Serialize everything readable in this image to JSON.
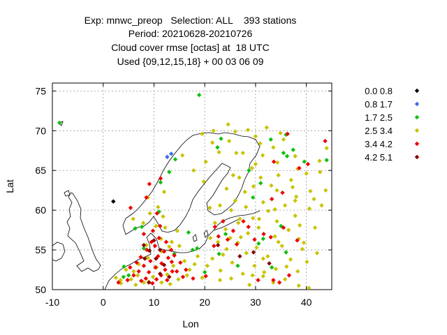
{
  "chart_data": {
    "type": "scatter",
    "title_lines": [
      "Exp: mnwc_preop   Selection: ALL    393 stations",
      "Period: 20210628-20210726",
      "Cloud cover rmse [octas] at  18 UTC",
      "Used {09,12,15,18} + 00 03 06 09"
    ],
    "xlabel": "Lon",
    "ylabel": "Lat",
    "xlim": [
      -10,
      45
    ],
    "ylim": [
      50,
      76
    ],
    "xticks": [
      -10,
      0,
      10,
      20,
      30,
      40
    ],
    "yticks": [
      50,
      55,
      60,
      65,
      70,
      75
    ],
    "grid": true,
    "legend_position": "right",
    "series": [
      {
        "name": "0.0 0.8",
        "color": "#000000",
        "points": [
          [
            2.0,
            61.1
          ]
        ]
      },
      {
        "name": "0.8 1.7",
        "color": "#3a6fe0",
        "points": [
          [
            12.6,
            66.7
          ],
          [
            13.4,
            67.1
          ]
        ]
      },
      {
        "name": "1.7 2.5",
        "color": "#0fbf0f",
        "points": [
          [
            -8.6,
            71.0
          ],
          [
            18.9,
            74.5
          ],
          [
            11.3,
            63.5
          ],
          [
            13.0,
            64.8
          ],
          [
            14.2,
            66.4
          ],
          [
            6.3,
            57.7
          ],
          [
            7.6,
            57.9
          ],
          [
            4.1,
            52.9
          ],
          [
            5.0,
            51.8
          ],
          [
            4.0,
            51.6
          ],
          [
            14.0,
            54.5
          ],
          [
            18.5,
            55.2
          ],
          [
            17.6,
            55.0
          ],
          [
            24.1,
            57.0
          ],
          [
            22.8,
            54.5
          ],
          [
            31.5,
            56.4
          ],
          [
            33.2,
            52.8
          ],
          [
            36.0,
            54.7
          ],
          [
            29.5,
            61.6
          ],
          [
            36.2,
            66.8
          ],
          [
            37.4,
            67.6
          ],
          [
            39.6,
            66.1
          ],
          [
            44.0,
            66.3
          ],
          [
            28.7,
            65.0
          ],
          [
            22.5,
            67.9
          ],
          [
            36.0,
            69.5
          ],
          [
            20.0,
            52.2
          ],
          [
            26.5,
            53.0
          ],
          [
            35.0,
            58.0
          ],
          [
            30.6,
            55.8
          ],
          [
            16.8,
            57.2
          ],
          [
            11.0,
            59.8
          ],
          [
            23.2,
            69.0
          ],
          [
            33.0,
            68.9
          ],
          [
            8.0,
            55.2
          ],
          [
            31.0,
            63.4
          ],
          [
            35.5,
            67.2
          ]
        ]
      },
      {
        "name": "2.5 3.4",
        "color": "#c8c400",
        "points": [
          [
            11.4,
            56.4
          ],
          [
            10.4,
            58.0
          ],
          [
            12.0,
            62.3
          ],
          [
            10.8,
            60.4
          ],
          [
            8.8,
            61.6
          ],
          [
            19.5,
            69.6
          ],
          [
            21.7,
            70.0
          ],
          [
            24.6,
            70.8
          ],
          [
            26.0,
            69.9
          ],
          [
            30.0,
            69.3
          ],
          [
            33.5,
            67.9
          ],
          [
            27.5,
            67.2
          ],
          [
            31.4,
            66.9
          ],
          [
            34.3,
            66.0
          ],
          [
            29.3,
            65.3
          ],
          [
            25.6,
            64.4
          ],
          [
            31.0,
            64.1
          ],
          [
            37.0,
            63.8
          ],
          [
            40.0,
            64.6
          ],
          [
            42.7,
            64.8
          ],
          [
            29.6,
            63.0
          ],
          [
            27.9,
            62.3
          ],
          [
            34.2,
            62.5
          ],
          [
            38.0,
            61.7
          ],
          [
            31.5,
            61.0
          ],
          [
            35.8,
            60.6
          ],
          [
            40.6,
            60.2
          ],
          [
            32.5,
            59.9
          ],
          [
            37.8,
            59.3
          ],
          [
            29.5,
            59.0
          ],
          [
            34.2,
            58.6
          ],
          [
            26.6,
            58.4
          ],
          [
            30.6,
            57.8
          ],
          [
            24.1,
            57.6
          ],
          [
            36.5,
            57.5
          ],
          [
            28.5,
            57.1
          ],
          [
            33.8,
            56.7
          ],
          [
            38.5,
            56.4
          ],
          [
            22.6,
            56.0
          ],
          [
            26.5,
            55.9
          ],
          [
            30.2,
            55.3
          ],
          [
            35.2,
            55.5
          ],
          [
            39.5,
            55.9
          ],
          [
            24.3,
            55.1
          ],
          [
            28.2,
            54.6
          ],
          [
            32.4,
            54.2
          ],
          [
            36.9,
            53.8
          ],
          [
            21.5,
            53.9
          ],
          [
            25.4,
            53.4
          ],
          [
            29.8,
            53.0
          ],
          [
            34.0,
            52.6
          ],
          [
            38.3,
            52.3
          ],
          [
            23.1,
            52.4
          ],
          [
            27.5,
            52.0
          ],
          [
            31.5,
            51.7
          ],
          [
            35.8,
            51.3
          ],
          [
            19.5,
            51.5
          ],
          [
            17.0,
            52.5
          ],
          [
            16.0,
            53.6
          ],
          [
            18.6,
            54.2
          ],
          [
            15.0,
            55.5
          ],
          [
            13.0,
            55.4
          ],
          [
            11.5,
            54.8
          ],
          [
            8.8,
            54.0
          ],
          [
            7.0,
            53.2
          ],
          [
            6.0,
            52.3
          ],
          [
            5.5,
            51.3
          ],
          [
            9.8,
            51.6
          ],
          [
            12.6,
            51.9
          ],
          [
            14.8,
            51.3
          ],
          [
            8.0,
            50.9
          ],
          [
            6.8,
            51.8
          ],
          [
            4.5,
            52.5
          ],
          [
            3.4,
            51.2
          ],
          [
            10.5,
            52.8
          ],
          [
            13.8,
            53.0
          ],
          [
            23.0,
            51.2
          ],
          [
            28.8,
            50.6
          ],
          [
            33.5,
            50.9
          ],
          [
            38.5,
            50.5
          ],
          [
            40.5,
            50.2
          ],
          [
            26.0,
            61.2
          ],
          [
            23.0,
            60.6
          ],
          [
            25.2,
            60.0
          ],
          [
            21.0,
            60.3
          ],
          [
            44.0,
            67.8
          ],
          [
            42.6,
            66.2
          ],
          [
            37.8,
            66.8
          ],
          [
            35.5,
            68.9
          ],
          [
            30.9,
            68.4
          ],
          [
            28.5,
            70.1
          ],
          [
            32.2,
            70.4
          ],
          [
            34.9,
            69.7
          ],
          [
            22.8,
            67.3
          ],
          [
            17.8,
            65.0
          ],
          [
            15.6,
            66.9
          ],
          [
            19.8,
            63.6
          ],
          [
            12.2,
            57.8
          ],
          [
            11.8,
            59.2
          ],
          [
            9.2,
            59.6
          ],
          [
            14.6,
            57.4
          ],
          [
            13.5,
            56.0
          ],
          [
            5.9,
            58.9
          ],
          [
            7.9,
            58.4
          ],
          [
            8.5,
            55.6
          ],
          [
            21.1,
            56.5
          ],
          [
            27.1,
            56.6
          ],
          [
            23.6,
            54.4
          ],
          [
            31.5,
            53.9
          ],
          [
            36.1,
            52.9
          ],
          [
            40.1,
            53.5
          ],
          [
            42.1,
            54.6
          ],
          [
            41.7,
            57.8
          ],
          [
            37.3,
            62.9
          ],
          [
            33.1,
            63.1
          ],
          [
            26.8,
            64.1
          ],
          [
            24.3,
            62.7
          ],
          [
            30.7,
            58.9
          ],
          [
            26.9,
            58.9
          ],
          [
            38.7,
            58.1
          ],
          [
            41.5,
            61.4
          ],
          [
            34.5,
            64.4
          ],
          [
            43.0,
            60.6
          ],
          [
            39.2,
            55.1
          ],
          [
            29.4,
            51.8
          ],
          [
            25.2,
            51.4
          ],
          [
            20.5,
            53.0
          ],
          [
            18.0,
            53.2
          ],
          [
            16.5,
            51.8
          ],
          [
            11.5,
            50.9
          ],
          [
            9.0,
            51.0
          ],
          [
            2.5,
            51.5
          ],
          [
            3.5,
            50.8
          ],
          [
            6.4,
            50.6
          ],
          [
            13.2,
            50.7
          ],
          [
            37.8,
            61.2
          ],
          [
            33.8,
            60.1
          ],
          [
            28.1,
            60.4
          ],
          [
            43.8,
            62.5
          ],
          [
            31.7,
            52.2
          ],
          [
            34.5,
            56.0
          ],
          [
            22.0,
            58.4
          ],
          [
            25.0,
            56.5
          ],
          [
            30.0,
            65.8
          ],
          [
            38.3,
            65.2
          ],
          [
            40.8,
            62.4
          ],
          [
            26.2,
            67.2
          ],
          [
            24.8,
            68.7
          ],
          [
            21.5,
            68.5
          ],
          [
            20.2,
            66.1
          ]
        ]
      },
      {
        "name": "3.4 4.2",
        "color": "#ee0000",
        "points": [
          [
            43.7,
            68.7
          ],
          [
            36.3,
            69.6
          ],
          [
            33.6,
            66.1
          ],
          [
            38.6,
            65.3
          ],
          [
            40.3,
            65.8
          ],
          [
            33.2,
            61.4
          ],
          [
            35.3,
            62.2
          ],
          [
            11.3,
            64.0
          ],
          [
            9.1,
            63.3
          ],
          [
            8.5,
            61.6
          ],
          [
            5.4,
            60.3
          ],
          [
            10.6,
            59.6
          ],
          [
            11.2,
            58.0
          ],
          [
            23.6,
            58.6
          ],
          [
            22.0,
            57.9
          ],
          [
            25.6,
            57.4
          ],
          [
            27.6,
            58.6
          ],
          [
            28.6,
            57.9
          ],
          [
            26.3,
            55.7
          ],
          [
            33.0,
            56.6
          ],
          [
            38.2,
            56.2
          ],
          [
            36.6,
            51.8
          ],
          [
            33.5,
            51.2
          ],
          [
            8.0,
            57.0
          ],
          [
            9.5,
            56.0
          ],
          [
            10.2,
            55.5
          ],
          [
            8.6,
            55.0
          ],
          [
            12.0,
            54.8
          ],
          [
            10.8,
            54.2
          ],
          [
            12.8,
            54.0
          ],
          [
            9.3,
            53.6
          ],
          [
            11.5,
            53.3
          ],
          [
            13.5,
            53.5
          ],
          [
            8.0,
            53.0
          ],
          [
            10.3,
            52.8
          ],
          [
            12.2,
            52.5
          ],
          [
            7.0,
            52.3
          ],
          [
            9.0,
            52.2
          ],
          [
            11.4,
            51.8
          ],
          [
            13.6,
            52.3
          ],
          [
            6.0,
            51.8
          ],
          [
            8.4,
            51.4
          ],
          [
            10.5,
            51.3
          ],
          [
            12.6,
            51.2
          ],
          [
            14.5,
            52.3
          ],
          [
            7.5,
            51.1
          ],
          [
            9.7,
            50.8
          ],
          [
            5.3,
            52.8
          ],
          [
            14.0,
            54.3
          ],
          [
            15.2,
            53.4
          ],
          [
            16.3,
            52.5
          ],
          [
            7.4,
            54.1
          ],
          [
            6.6,
            53.4
          ],
          [
            4.8,
            51.2
          ],
          [
            11.0,
            56.5
          ],
          [
            12.4,
            56.0
          ],
          [
            30.5,
            51.2
          ],
          [
            34.7,
            50.9
          ],
          [
            22.7,
            56.7
          ],
          [
            24.5,
            56.3
          ],
          [
            21.8,
            55.5
          ],
          [
            31.6,
            57.0
          ],
          [
            35.5,
            57.8
          ],
          [
            29.8,
            56.3
          ],
          [
            9.8,
            57.4
          ],
          [
            13.4,
            55.0
          ],
          [
            15.7,
            51.6
          ],
          [
            3.0,
            50.9
          ],
          [
            20.2,
            51.7
          ],
          [
            17.7,
            51.4
          ]
        ]
      },
      {
        "name": "4.2 5.1",
        "color": "#8b0000",
        "points": [
          [
            8.0,
            55.6
          ],
          [
            10.0,
            56.2
          ],
          [
            9.1,
            54.9
          ],
          [
            11.2,
            55.0
          ],
          [
            10.4,
            53.9
          ],
          [
            12.0,
            53.1
          ],
          [
            8.2,
            53.9
          ],
          [
            29.6,
            54.7
          ],
          [
            32.7,
            53.3
          ],
          [
            26.9,
            54.2
          ],
          [
            13.0,
            51.6
          ],
          [
            22.6,
            55.6
          ],
          [
            11.2,
            52.0
          ],
          [
            9.0,
            50.9
          ]
        ]
      }
    ]
  }
}
